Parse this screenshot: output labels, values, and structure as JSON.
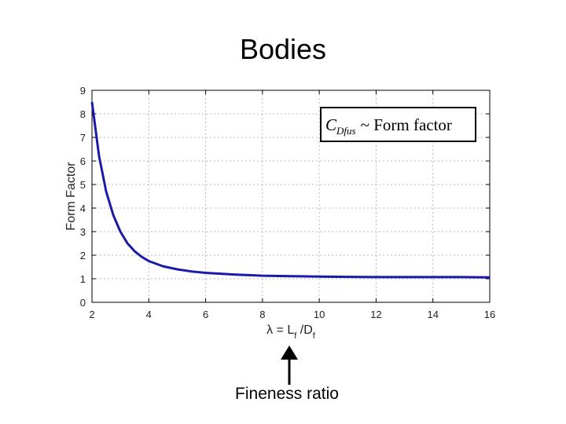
{
  "slide": {
    "title": "Bodies",
    "caption": "Fineness ratio"
  },
  "chart_data": {
    "type": "line",
    "title": "",
    "xlabel": "λ = L_f /D_f",
    "xlabel_parts": {
      "lead": "λ = L",
      "sub1": "f",
      "mid": " /D",
      "sub2": "f"
    },
    "ylabel": "Form Factor",
    "xlim": [
      2,
      16
    ],
    "ylim": [
      0,
      9
    ],
    "xticks": [
      2,
      4,
      6,
      8,
      10,
      12,
      14,
      16
    ],
    "yticks": [
      0,
      1,
      2,
      3,
      4,
      5,
      6,
      7,
      8,
      9
    ],
    "grid": true,
    "legend": {
      "placement": "top-right",
      "parts": {
        "C": "C",
        "sub": "Dfus",
        "rest": "~ Form factor"
      }
    },
    "series": [
      {
        "color": "#1a1aaa",
        "x": [
          2.0,
          2.25,
          2.5,
          2.75,
          3.0,
          3.25,
          3.5,
          3.75,
          4.0,
          4.5,
          5.0,
          5.5,
          6.0,
          7.0,
          8.0,
          9.0,
          10.0,
          11.0,
          12.0,
          13.0,
          14.0,
          15.0,
          16.0
        ],
        "y": [
          8.5,
          6.2,
          4.7,
          3.7,
          3.0,
          2.5,
          2.17,
          1.93,
          1.75,
          1.53,
          1.4,
          1.31,
          1.25,
          1.18,
          1.13,
          1.11,
          1.09,
          1.08,
          1.07,
          1.07,
          1.07,
          1.07,
          1.06
        ]
      }
    ]
  }
}
